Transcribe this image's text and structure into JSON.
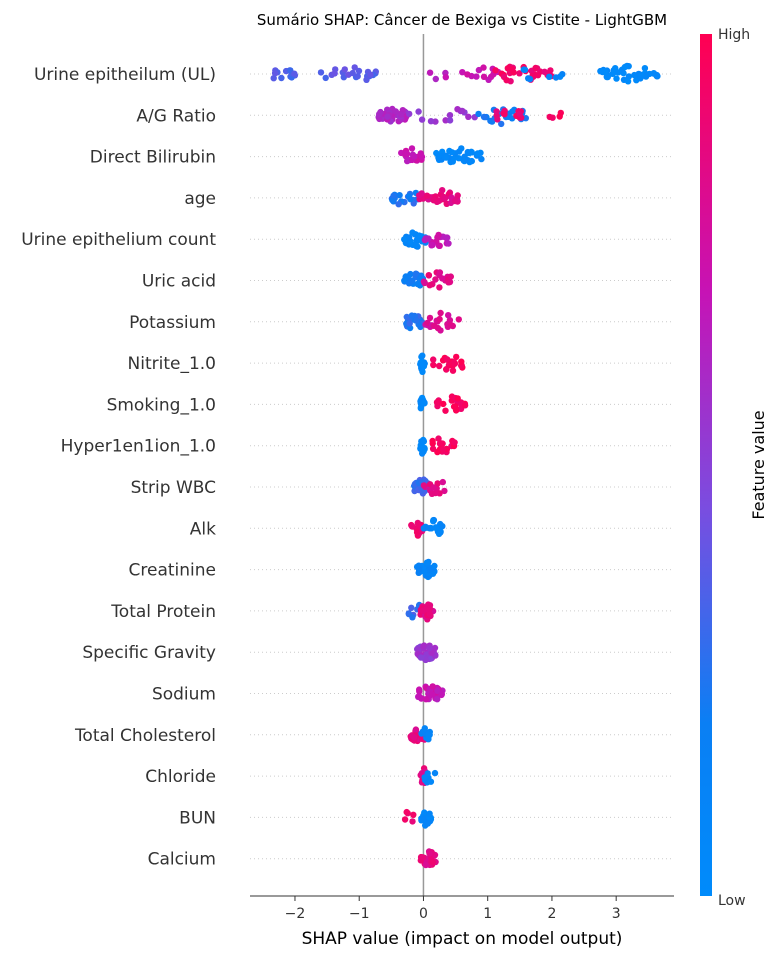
{
  "chart_data": {
    "type": "scatter",
    "subtype": "shap-beeswarm-summary",
    "title": "Sumário SHAP: Câncer de Bexiga vs Cistite - LightGBM",
    "xlabel": "SHAP value (impact on model output)",
    "xlim": [
      -2.7,
      3.9
    ],
    "xticks": [
      -2,
      -1,
      0,
      1,
      2,
      3
    ],
    "xtick_labels": [
      "−2",
      "−1",
      "0",
      "1",
      "2",
      "3"
    ],
    "colorbar": {
      "label": "Feature value",
      "high_label": "High",
      "low_label": "Low",
      "low_color": "#008bfb",
      "high_color": "#ff0052"
    },
    "features": [
      {
        "name": "Urine epitheilum (UL)",
        "clusters": [
          {
            "range": [
              -2.4,
              -2.0
            ],
            "n": 14,
            "fv": 0.35
          },
          {
            "range": [
              -1.6,
              -0.7
            ],
            "n": 22,
            "fv": 0.38
          },
          {
            "range": [
              0.1,
              0.4
            ],
            "n": 4,
            "fv": 0.65
          },
          {
            "range": [
              0.6,
              1.3
            ],
            "n": 12,
            "fv": 0.7
          },
          {
            "range": [
              1.0,
              2.0
            ],
            "n": 28,
            "fv": 0.92
          },
          {
            "range": [
              1.4,
              2.2
            ],
            "n": 8,
            "fv": 0.1
          },
          {
            "range": [
              2.75,
              3.65
            ],
            "n": 44,
            "fv": 0.05
          }
        ]
      },
      {
        "name": "A/G Ratio",
        "clusters": [
          {
            "range": [
              -0.7,
              -0.25
            ],
            "n": 42,
            "fv": 0.62
          },
          {
            "range": [
              -0.25,
              0.8
            ],
            "n": 14,
            "fv": 0.55
          },
          {
            "range": [
              0.85,
              1.6
            ],
            "n": 24,
            "fv": 0.2
          },
          {
            "range": [
              1.1,
              1.55
            ],
            "n": 12,
            "fv": 0.9
          },
          {
            "range": [
              1.9,
              2.2
            ],
            "n": 4,
            "fv": 0.95
          }
        ]
      },
      {
        "name": "Direct Bilirubin",
        "clusters": [
          {
            "range": [
              -0.35,
              0.0
            ],
            "n": 18,
            "fv": 0.7
          },
          {
            "range": [
              0.2,
              0.95
            ],
            "n": 36,
            "fv": 0.07
          }
        ]
      },
      {
        "name": "age",
        "clusters": [
          {
            "range": [
              -0.5,
              -0.05
            ],
            "n": 18,
            "fv": 0.25
          },
          {
            "range": [
              -0.1,
              0.55
            ],
            "n": 30,
            "fv": 0.85
          }
        ]
      },
      {
        "name": "Urine epithelium count",
        "clusters": [
          {
            "range": [
              -0.3,
              0.05
            ],
            "n": 30,
            "fv": 0.1
          },
          {
            "range": [
              0.0,
              0.45
            ],
            "n": 22,
            "fv": 0.7
          }
        ]
      },
      {
        "name": "Uric acid",
        "clusters": [
          {
            "range": [
              -0.3,
              0.0
            ],
            "n": 22,
            "fv": 0.2
          },
          {
            "range": [
              0.0,
              0.45
            ],
            "n": 20,
            "fv": 0.85
          }
        ]
      },
      {
        "name": "Potassium",
        "clusters": [
          {
            "range": [
              -0.3,
              0.0
            ],
            "n": 22,
            "fv": 0.25
          },
          {
            "range": [
              0.0,
              0.55
            ],
            "n": 22,
            "fv": 0.8
          }
        ]
      },
      {
        "name": "Nitrite_1.0",
        "clusters": [
          {
            "range": [
              -0.05,
              0.02
            ],
            "n": 14,
            "fv": 0.05
          },
          {
            "range": [
              0.15,
              0.7
            ],
            "n": 20,
            "fv": 0.97
          }
        ]
      },
      {
        "name": "Smoking_1.0",
        "clusters": [
          {
            "range": [
              -0.05,
              0.02
            ],
            "n": 14,
            "fv": 0.05
          },
          {
            "range": [
              0.15,
              0.65
            ],
            "n": 20,
            "fv": 0.97
          }
        ]
      },
      {
        "name": "Hyper1en1ion_1.0",
        "clusters": [
          {
            "range": [
              -0.05,
              0.02
            ],
            "n": 14,
            "fv": 0.05
          },
          {
            "range": [
              0.1,
              0.5
            ],
            "n": 18,
            "fv": 0.97
          }
        ]
      },
      {
        "name": "Strip WBC",
        "clusters": [
          {
            "range": [
              -0.15,
              0.1
            ],
            "n": 24,
            "fv": 0.3
          },
          {
            "range": [
              0.0,
              0.35
            ],
            "n": 12,
            "fv": 0.85
          }
        ]
      },
      {
        "name": "Alk",
        "clusters": [
          {
            "range": [
              -0.2,
              0.0
            ],
            "n": 14,
            "fv": 0.9
          },
          {
            "range": [
              0.0,
              0.3
            ],
            "n": 20,
            "fv": 0.1
          }
        ]
      },
      {
        "name": "Creatinine",
        "clusters": [
          {
            "range": [
              -0.1,
              0.2
            ],
            "n": 34,
            "fv": 0.12
          }
        ]
      },
      {
        "name": "Total Protein",
        "clusters": [
          {
            "range": [
              -0.25,
              0.0
            ],
            "n": 10,
            "fv": 0.3
          },
          {
            "range": [
              -0.05,
              0.15
            ],
            "n": 24,
            "fv": 0.85
          }
        ]
      },
      {
        "name": "Specific Gravity",
        "clusters": [
          {
            "range": [
              -0.1,
              0.2
            ],
            "n": 34,
            "fv": 0.55
          }
        ]
      },
      {
        "name": "Sodium",
        "clusters": [
          {
            "range": [
              -0.1,
              0.3
            ],
            "n": 36,
            "fv": 0.7
          }
        ]
      },
      {
        "name": "Total Cholesterol",
        "clusters": [
          {
            "range": [
              -0.2,
              0.05
            ],
            "n": 18,
            "fv": 0.85
          },
          {
            "range": [
              -0.05,
              0.1
            ],
            "n": 10,
            "fv": 0.1
          }
        ]
      },
      {
        "name": "Chloride",
        "clusters": [
          {
            "range": [
              -0.05,
              0.05
            ],
            "n": 20,
            "fv": 0.85
          },
          {
            "range": [
              0.0,
              0.2
            ],
            "n": 8,
            "fv": 0.1
          }
        ]
      },
      {
        "name": "BUN",
        "clusters": [
          {
            "range": [
              -0.3,
              -0.15
            ],
            "n": 5,
            "fv": 0.92
          },
          {
            "range": [
              -0.05,
              0.12
            ],
            "n": 24,
            "fv": 0.08
          }
        ]
      },
      {
        "name": "Calcium",
        "clusters": [
          {
            "range": [
              -0.05,
              0.2
            ],
            "n": 28,
            "fv": 0.85
          }
        ]
      }
    ]
  }
}
